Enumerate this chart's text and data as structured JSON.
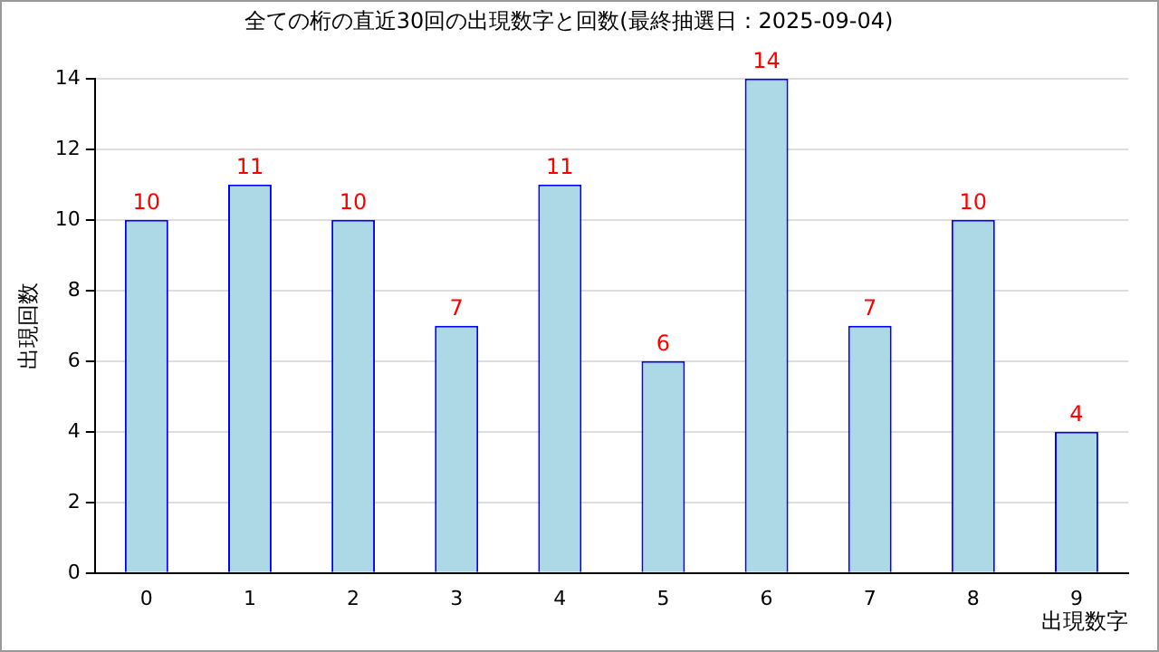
{
  "chart_data": {
    "type": "bar",
    "title": "全ての桁の直近30回の出現数字と回数(最終抽選日：2025-09-04)",
    "xlabel": "出現数字",
    "ylabel": "出現回数",
    "categories": [
      "0",
      "1",
      "2",
      "3",
      "4",
      "5",
      "6",
      "7",
      "8",
      "9"
    ],
    "series": [
      {
        "values": [
          10,
          11,
          10,
          7,
          11,
          6,
          14,
          7,
          10,
          4
        ],
        "color": "#add8e6"
      }
    ],
    "ylim": [
      0,
      14
    ],
    "yticks": [
      0,
      2,
      4,
      6,
      8,
      10,
      12,
      14
    ],
    "grid": "y",
    "legend": false,
    "data_labels": true
  }
}
